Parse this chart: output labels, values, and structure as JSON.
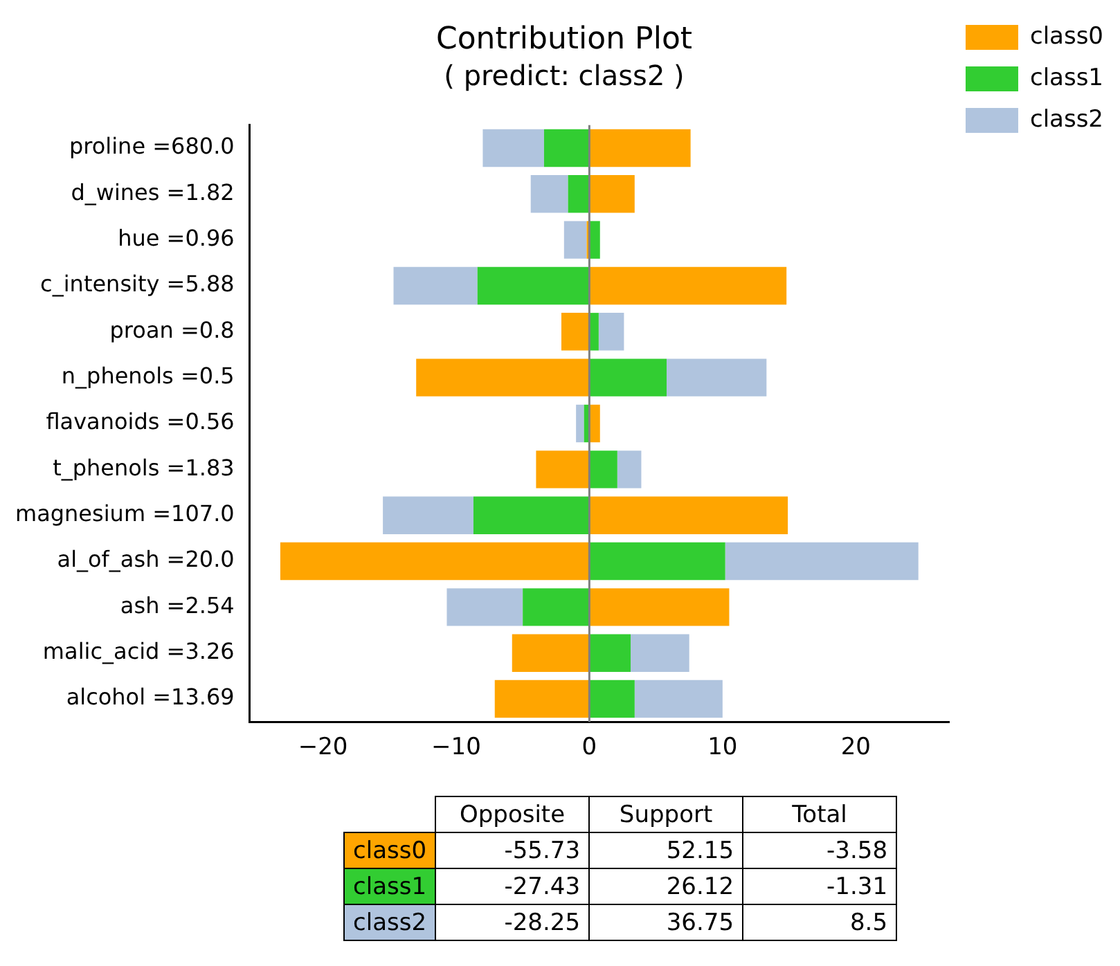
{
  "chart_data": [
    {
      "type": "bar",
      "orientation": "horizontal",
      "stacked": true,
      "title": "Contribution Plot",
      "subtitle": "( predict: class2 )",
      "categories": [
        "proline =680.0",
        "d_wines =1.82",
        "hue =0.96",
        "c_intensity =5.88",
        "proan =0.8",
        "n_phenols =0.5",
        "flavanoids =0.56",
        "t_phenols =1.83",
        "magnesium =107.0",
        "al_of_ash =20.0",
        "ash =2.54",
        "malic_acid =3.26",
        "alcohol =13.69"
      ],
      "series": [
        {
          "name": "class0",
          "color": "#ffa500",
          "values": [
            7.6,
            3.4,
            -0.2,
            14.8,
            -2.1,
            -13.0,
            0.8,
            -4.0,
            14.9,
            -23.2,
            10.5,
            -5.8,
            -7.1
          ]
        },
        {
          "name": "class1",
          "color": "#32cd32",
          "values": [
            -3.4,
            -1.6,
            0.8,
            -8.4,
            0.7,
            5.8,
            -0.4,
            2.1,
            -8.7,
            10.2,
            -5.0,
            3.1,
            3.4
          ]
        },
        {
          "name": "class2",
          "color": "#b0c4de",
          "values": [
            -4.6,
            -2.8,
            -1.7,
            -6.3,
            1.9,
            7.5,
            -0.6,
            1.8,
            -6.8,
            14.5,
            -5.7,
            4.4,
            6.6
          ]
        }
      ],
      "xlim": [
        -25.5,
        27
      ],
      "xticks": [
        -20,
        -10,
        0,
        10,
        20
      ],
      "ref_lines": [
        {
          "axis": "x",
          "value": 0,
          "color": "#808080"
        }
      ],
      "grid": false,
      "legend": "right"
    },
    {
      "type": "heatmap",
      "categories": [
        "Opposite",
        "Support",
        "Total"
      ],
      "y_categories": [
        "class0",
        "class1",
        "class2"
      ],
      "colors": [
        "#ffa500",
        "#32cd32",
        "#b0c4de"
      ],
      "data_labels": true,
      "cells": [
        [
          -55.73,
          52.15,
          -3.58
        ],
        [
          -27.43,
          26.12,
          -1.31
        ],
        [
          -28.25,
          36.75,
          8.5
        ]
      ]
    }
  ]
}
